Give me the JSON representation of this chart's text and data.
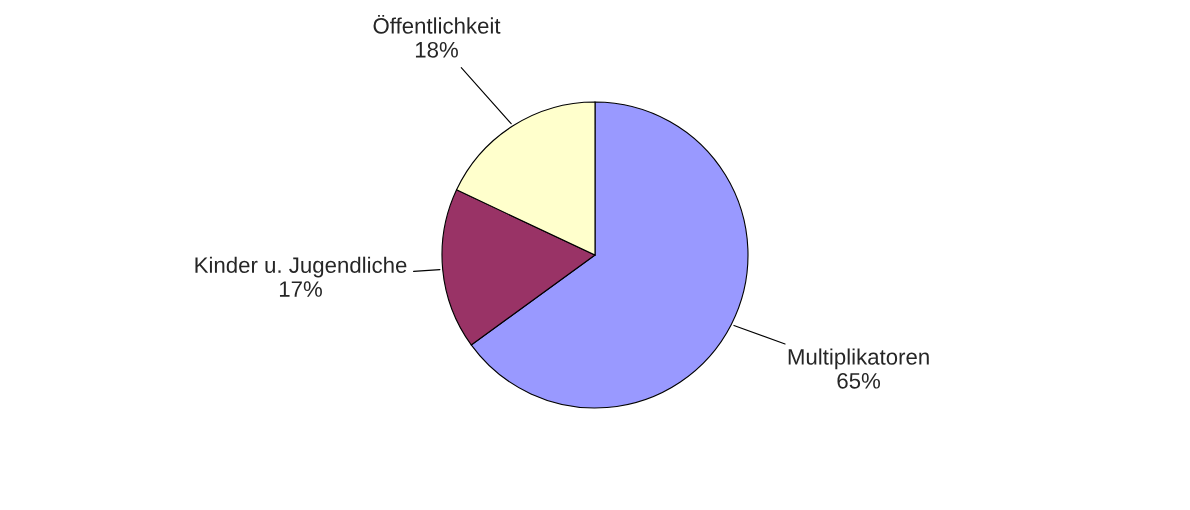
{
  "chart_data": {
    "type": "pie",
    "categories": [
      "Multiplikatoren",
      "Kinder u. Jugendliche",
      "Öffentlichkeit"
    ],
    "values": [
      65,
      17,
      18
    ],
    "value_labels": [
      "65%",
      "17%",
      "18%"
    ],
    "colors": [
      "#9999ff",
      "#993366",
      "#ffffcc"
    ]
  }
}
